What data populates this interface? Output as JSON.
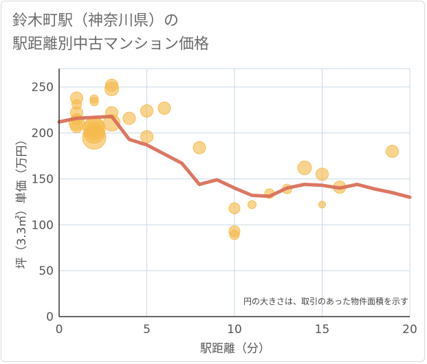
{
  "title": {
    "line1": "鈴木町駅（神奈川県）の",
    "line2": "駅距離別中古マンション価格"
  },
  "colors": {
    "bubble": "#f5b94a",
    "line": "#d9705a",
    "grid": "#c9d9e6",
    "axis": "#333333",
    "text": "#555555"
  },
  "chart_data": {
    "type": "scatter",
    "xlabel": "駅距離（分）",
    "ylabel": "坪（3.3㎡）単価（万円）",
    "xlim": [
      0,
      20
    ],
    "ylim": [
      0,
      270
    ],
    "xticks": [
      "0",
      "5",
      "10",
      "15",
      "20"
    ],
    "yticks": [
      "0",
      "50",
      "100",
      "150",
      "200",
      "250"
    ],
    "grid": true,
    "annotation": "円の大きさは、取引のあった物件面積を示す",
    "bubbles": [
      {
        "x": 1,
        "y": 238,
        "size": 9
      },
      {
        "x": 1,
        "y": 231,
        "size": 7
      },
      {
        "x": 1,
        "y": 222,
        "size": 9
      },
      {
        "x": 1,
        "y": 215,
        "size": 8
      },
      {
        "x": 1,
        "y": 211,
        "size": 11
      },
      {
        "x": 1,
        "y": 207,
        "size": 9
      },
      {
        "x": 2,
        "y": 237,
        "size": 6
      },
      {
        "x": 2,
        "y": 234,
        "size": 6
      },
      {
        "x": 2,
        "y": 207,
        "size": 14
      },
      {
        "x": 2,
        "y": 205,
        "size": 16
      },
      {
        "x": 2,
        "y": 200,
        "size": 15
      },
      {
        "x": 2,
        "y": 195,
        "size": 17
      },
      {
        "x": 3,
        "y": 252,
        "size": 9
      },
      {
        "x": 3,
        "y": 248,
        "size": 10
      },
      {
        "x": 3,
        "y": 222,
        "size": 9
      },
      {
        "x": 3,
        "y": 211,
        "size": 12
      },
      {
        "x": 4,
        "y": 216,
        "size": 9
      },
      {
        "x": 5,
        "y": 224,
        "size": 9
      },
      {
        "x": 5,
        "y": 196,
        "size": 9
      },
      {
        "x": 6,
        "y": 227,
        "size": 9
      },
      {
        "x": 8,
        "y": 184,
        "size": 9
      },
      {
        "x": 10,
        "y": 118,
        "size": 8
      },
      {
        "x": 10,
        "y": 93,
        "size": 8
      },
      {
        "x": 10,
        "y": 89,
        "size": 7
      },
      {
        "x": 11,
        "y": 122,
        "size": 6
      },
      {
        "x": 12,
        "y": 134,
        "size": 7
      },
      {
        "x": 13,
        "y": 139,
        "size": 7
      },
      {
        "x": 14,
        "y": 162,
        "size": 10
      },
      {
        "x": 15,
        "y": 155,
        "size": 9
      },
      {
        "x": 15,
        "y": 122,
        "size": 5
      },
      {
        "x": 16,
        "y": 141,
        "size": 9
      },
      {
        "x": 19,
        "y": 180,
        "size": 9
      }
    ],
    "series": [
      {
        "x": [
          0,
          1,
          2,
          3,
          4,
          5,
          6,
          7,
          8,
          9,
          10,
          11,
          12,
          13,
          14,
          15,
          16,
          17,
          18,
          19,
          20
        ],
        "values": [
          212,
          216,
          217,
          218,
          193,
          187,
          177,
          167,
          144,
          149,
          140,
          132,
          131,
          140,
          144,
          143,
          140,
          144,
          139,
          135,
          130
        ]
      }
    ]
  }
}
